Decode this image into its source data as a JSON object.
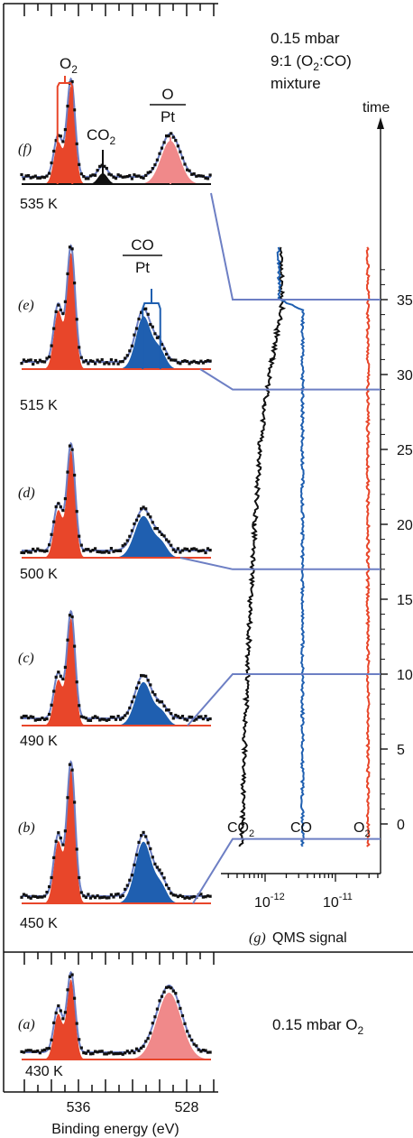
{
  "chart_data": {
    "type": "line",
    "xlabel": "Binding energy (eV)",
    "x_ticks": [
      "536",
      "528"
    ],
    "xlim": [
      540,
      526
    ],
    "colors": {
      "o2_red": "#e8462a",
      "o_pt_pink": "#f0898a",
      "co_blue": "#1f5fb0",
      "fit_line": "#6d7fc4",
      "co2_black": "#111111"
    },
    "header": {
      "line1": "0.15 mbar",
      "line2a": "9:1 (O",
      "line2b": "2",
      "line2c": ":CO)",
      "line3": "mixture"
    },
    "peak_labels": {
      "o2": {
        "main": "O",
        "sub": "2"
      },
      "co2": {
        "main": "CO",
        "sub": "2"
      },
      "o_pt": {
        "top": "O",
        "bottom": "Pt"
      },
      "co_pt": {
        "top": "CO",
        "bottom": "Pt"
      }
    },
    "spectra": [
      {
        "panel": "(f)",
        "temperature": "535 K",
        "components": [
          "O2 gas",
          "CO2 gas",
          "O/Pt"
        ]
      },
      {
        "panel": "(e)",
        "temperature": "515 K",
        "components": [
          "O2 gas",
          "CO/Pt"
        ]
      },
      {
        "panel": "(d)",
        "temperature": "500 K",
        "components": [
          "O2 gas",
          "CO/Pt"
        ]
      },
      {
        "panel": "(c)",
        "temperature": "490 K",
        "components": [
          "O2 gas",
          "CO/Pt"
        ]
      },
      {
        "panel": "(b)",
        "temperature": "450 K",
        "components": [
          "O2 gas",
          "CO/Pt"
        ]
      },
      {
        "panel": "(a)",
        "temperature": "430 K",
        "components": [
          "O2 gas",
          "O/Pt"
        ]
      }
    ],
    "panel_a_label": {
      "main": "0.15 mbar O",
      "sub": "2"
    },
    "qms": {
      "panel": "(g)",
      "xlabel": "QMS signal",
      "x_scale": "log",
      "x_ticks": [
        {
          "base": "10",
          "exp": "-12"
        },
        {
          "base": "10",
          "exp": "-11"
        }
      ],
      "ylabel": "time",
      "y_ticks": [
        "0",
        "5",
        "10",
        "15",
        "20",
        "25",
        "30",
        "35"
      ],
      "ylim": [
        -1.5,
        38.5
      ],
      "series": [
        {
          "name": "CO2",
          "label_main": "CO",
          "label_sub": "2",
          "color": "#111111",
          "points": [
            [
              -1.5,
              4.6e-13
            ],
            [
              0,
              4.7e-13
            ],
            [
              5,
              5.1e-13
            ],
            [
              10,
              5.6e-13
            ],
            [
              15,
              6.2e-13
            ],
            [
              20,
              7.1e-13
            ],
            [
              25,
              8.4e-13
            ],
            [
              28,
              1e-12
            ],
            [
              31,
              1.25e-12
            ],
            [
              33,
              1.5e-12
            ],
            [
              34.3,
              1.75e-12
            ],
            [
              35,
              1.7e-12
            ],
            [
              38.5,
              1.7e-12
            ]
          ]
        },
        {
          "name": "CO",
          "label_main": "CO",
          "label_sub": "",
          "color": "#1f5fb0",
          "points": [
            [
              -1.5,
              3.4e-12
            ],
            [
              34.3,
              3.4e-12
            ],
            [
              35,
              1.6e-12
            ],
            [
              38.5,
              1.55e-12
            ]
          ]
        },
        {
          "name": "O2",
          "label_main": "O",
          "label_sub": "2",
          "color": "#e8462a",
          "points": [
            [
              -1.5,
              2.9e-11
            ],
            [
              38.5,
              2.9e-11
            ]
          ]
        }
      ],
      "spectrum_markers": [
        {
          "panel": "(b)",
          "time": -1
        },
        {
          "panel": "(c)",
          "time": 10
        },
        {
          "panel": "(d)",
          "time": 17
        },
        {
          "panel": "(e)",
          "time": 29
        },
        {
          "panel": "(f)",
          "time": 35
        }
      ]
    }
  }
}
